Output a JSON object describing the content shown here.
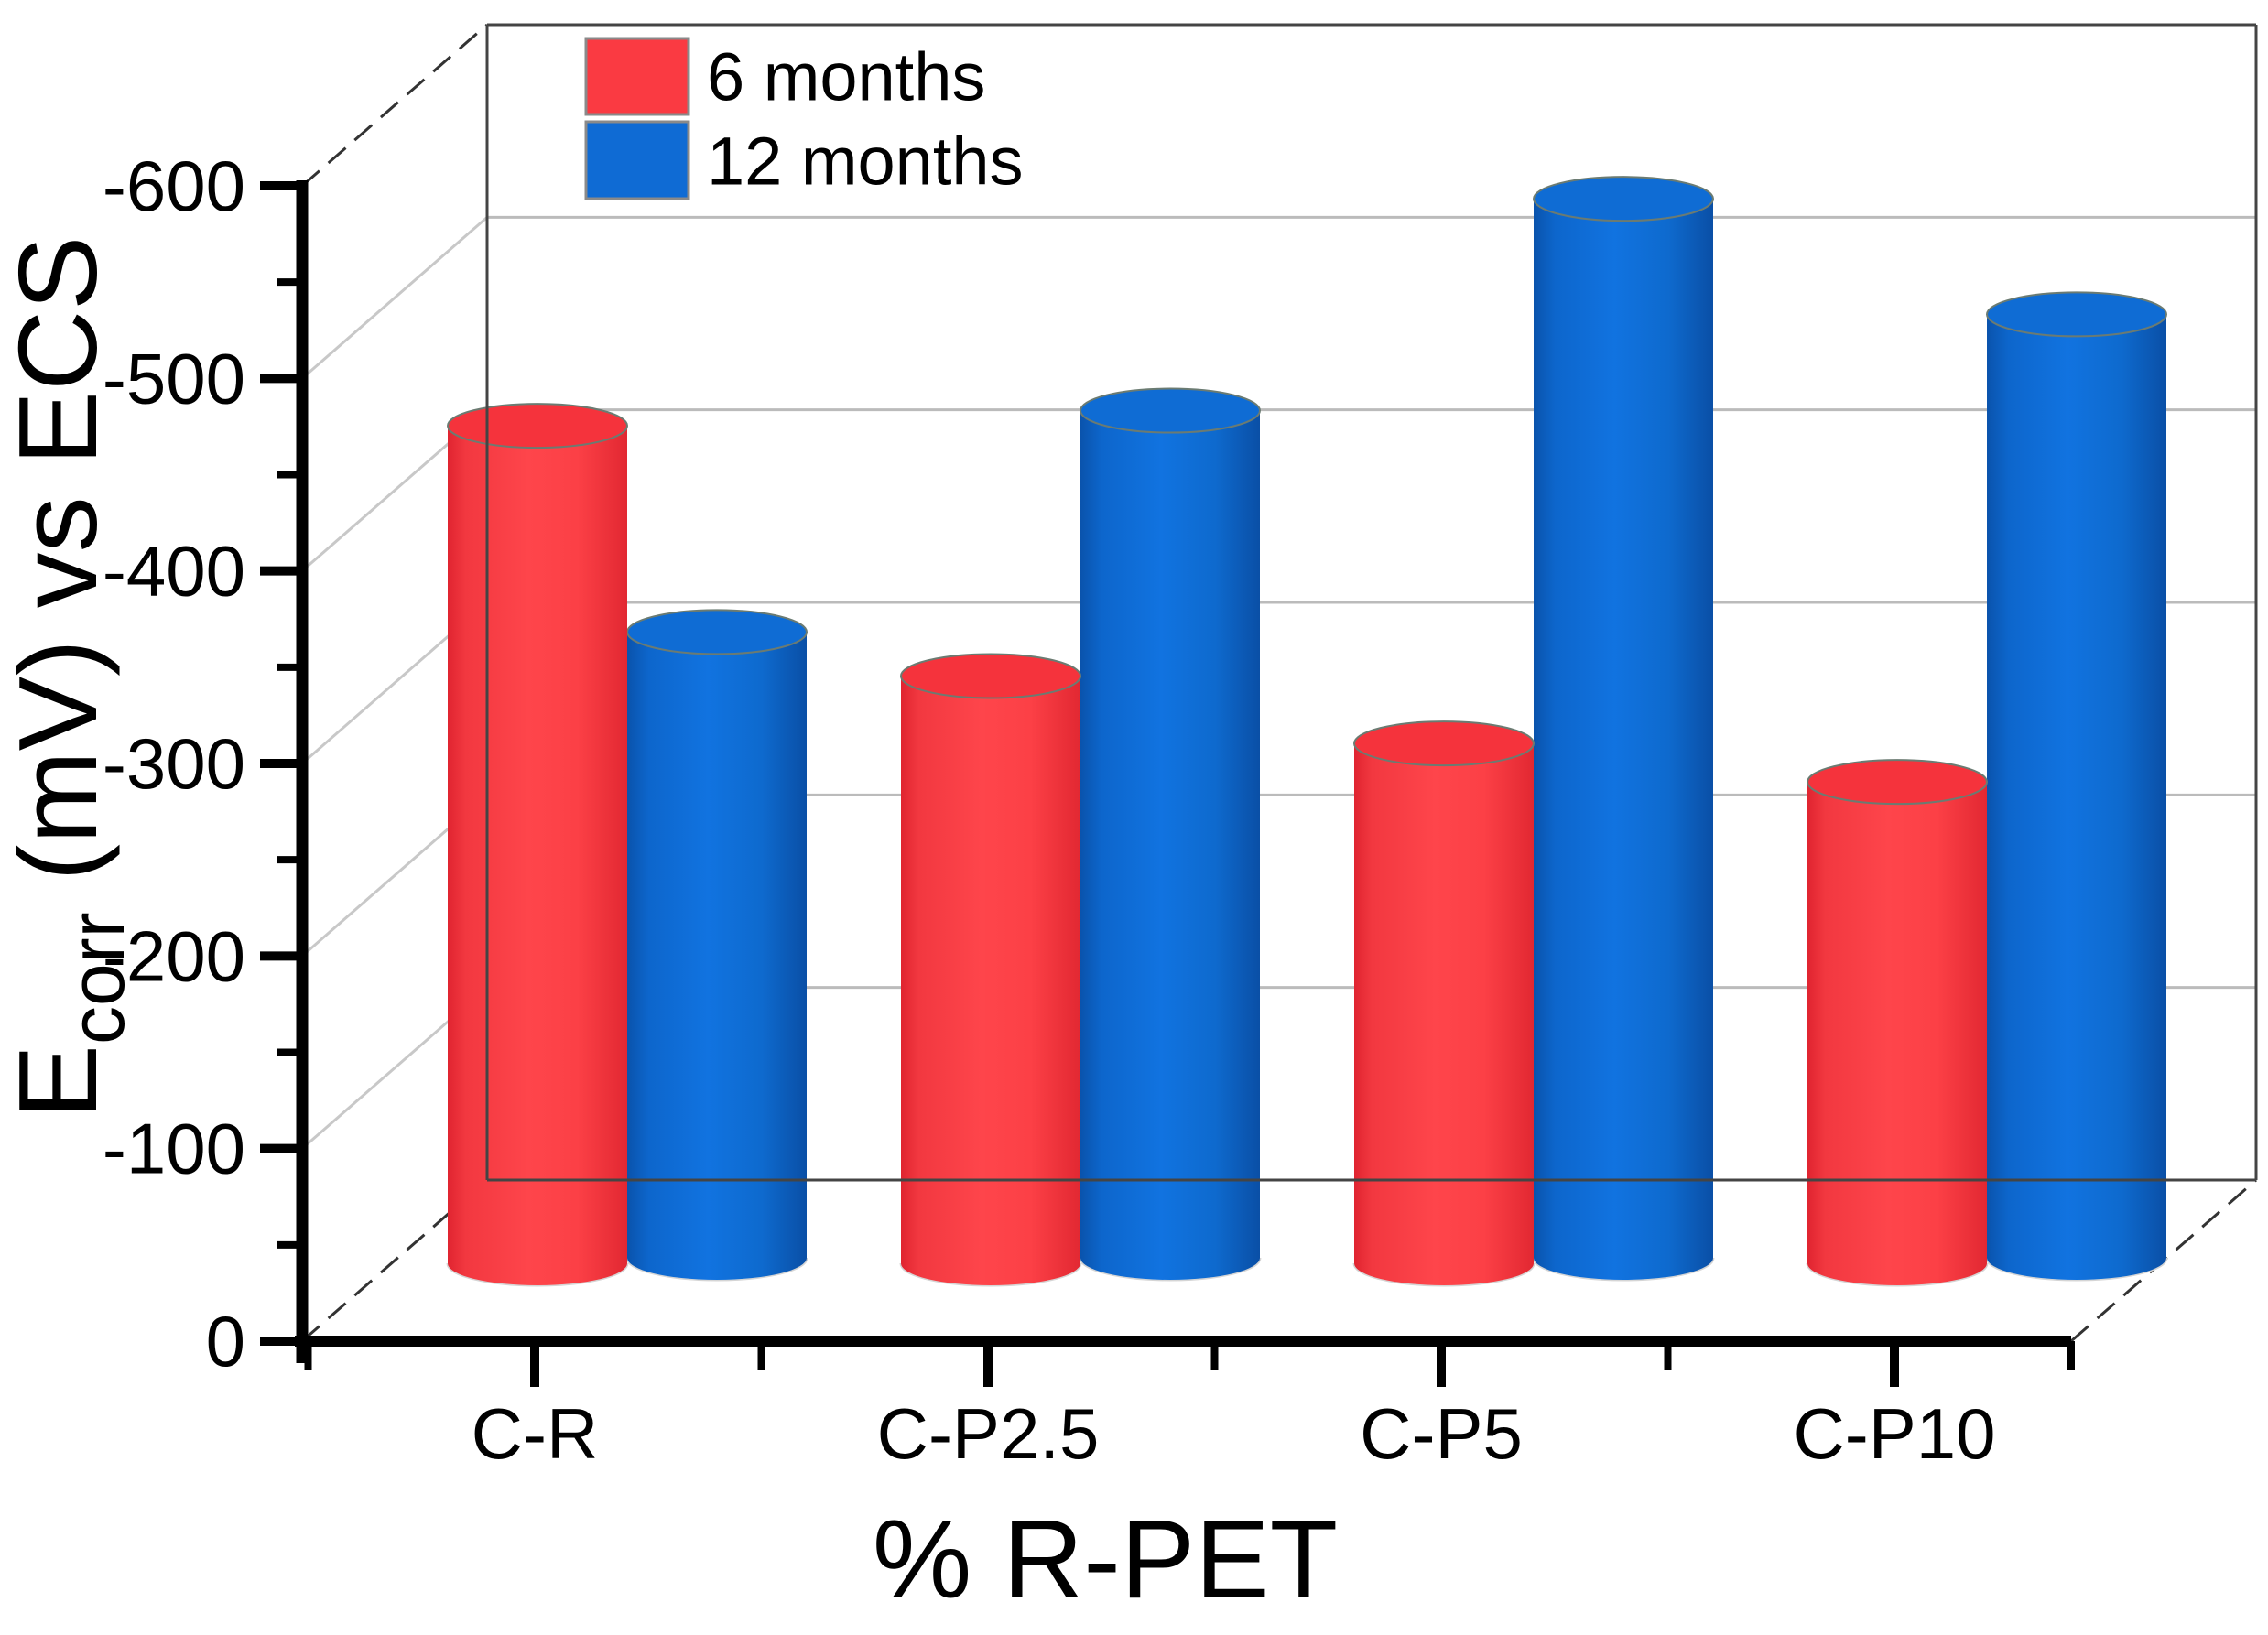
{
  "chart_data": {
    "type": "bar",
    "style": "3d-cylinder",
    "title": "",
    "xlabel": "% R-PET",
    "ylabel": "Ecorr (mV) vs ECS",
    "ylabel_parts": {
      "main": "E",
      "sub": "corr",
      "rest": " (mV) vs ECS"
    },
    "categories": [
      "C-R",
      "C-P2.5",
      "C-P5",
      "C-P10"
    ],
    "series": [
      {
        "name": "6 months",
        "color": "#fa3a42",
        "values": [
          -435,
          -305,
          -270,
          -250
        ]
      },
      {
        "name": "12 months",
        "color": "#0f6bd4",
        "values": [
          -325,
          -440,
          -550,
          -490
        ]
      }
    ],
    "ylim": [
      0,
      -600
    ],
    "y_axis_inverted": true,
    "y_tick_interval": 100,
    "y_minor_tick_interval": 50,
    "y_ticks": [
      "0",
      "-100",
      "-200",
      "-300",
      "-400",
      "-500",
      "-600"
    ],
    "grid": true,
    "legend_position": "top-left-inside",
    "colors": {
      "red_side": "#fe454b",
      "red_edge": "#e02430",
      "red_top": "#f5333c",
      "blue_side": "#1173e0",
      "blue_edge": "#0a53ac",
      "blue_top": "#0f6cd4",
      "grid_back": "#bbbbbb",
      "grid_wall": "#c8c8c8",
      "frame": "#444444",
      "axis": "#000000"
    }
  },
  "legend": {
    "item_0_label": "6 months",
    "item_1_label": "12 months"
  }
}
